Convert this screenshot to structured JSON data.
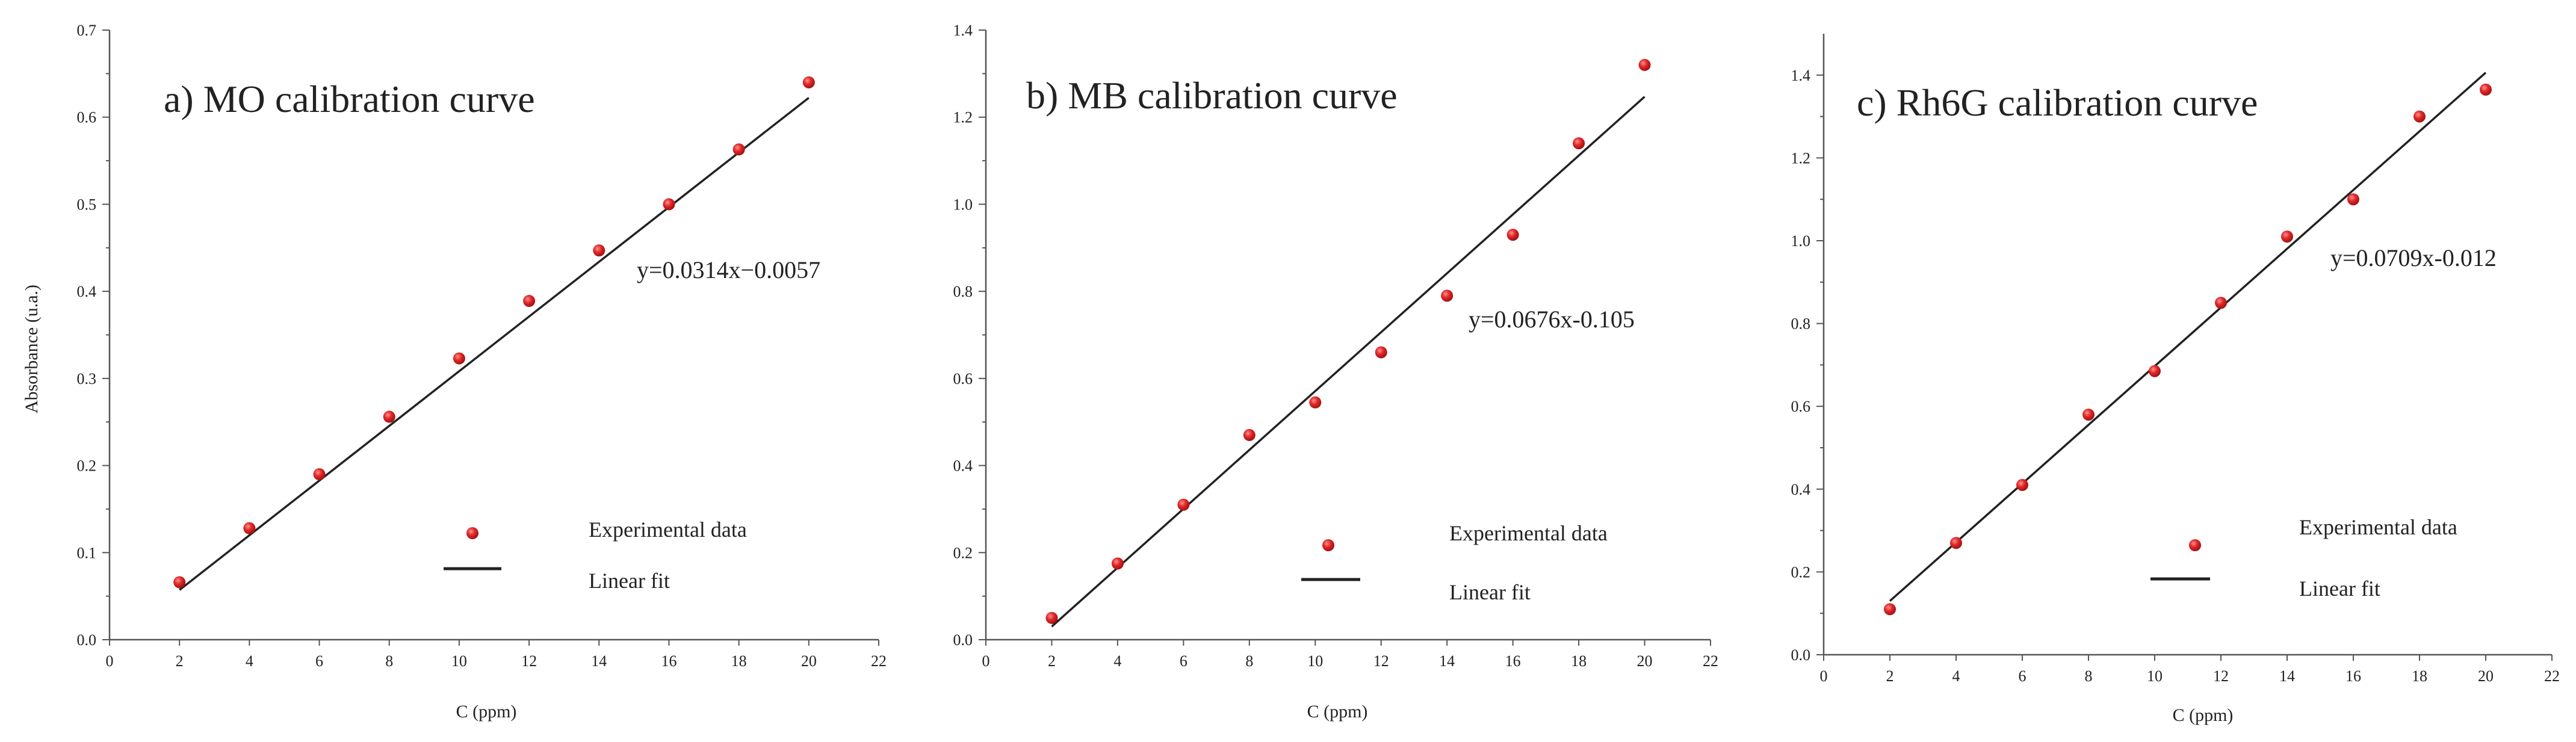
{
  "chart_data": [
    {
      "type": "scatter",
      "title": "a) MO calibration curve",
      "xlabel": "C (ppm)",
      "ylabel": "Absorbance (u.a.)",
      "xlim": [
        0,
        22
      ],
      "ylim": [
        0,
        0.7
      ],
      "xticks": [
        0,
        2,
        4,
        6,
        8,
        10,
        12,
        14,
        16,
        18,
        20,
        22
      ],
      "xtick_labels": [
        "0",
        "2",
        "4",
        "6",
        "8",
        "10",
        "12",
        "14",
        "16",
        "18",
        "20",
        "22"
      ],
      "yticks": [
        0,
        0.1,
        0.2,
        0.3,
        0.4,
        0.5,
        0.6,
        0.7
      ],
      "ytick_labels": [
        "0.0",
        "0.1",
        "0.2",
        "0.3",
        "0.4",
        "0.5",
        "0.6",
        "0.7"
      ],
      "series": [
        {
          "name": "Experimental data",
          "x": [
            2,
            4,
            6,
            8,
            10,
            12,
            14,
            16,
            18,
            20
          ],
          "y": [
            0.066,
            0.128,
            0.19,
            0.256,
            0.323,
            0.389,
            0.447,
            0.5,
            0.563,
            0.64
          ],
          "color": "#d42a2a"
        }
      ],
      "fit": {
        "name": "Linear fit",
        "slope": 0.0314,
        "intercept": -0.0057,
        "x_range": [
          2,
          20
        ],
        "color": "#222222"
      },
      "equation": "y=0.0314x−0.0057",
      "legend": {
        "marker_label": "Experimental data",
        "line_label": "Linear fit",
        "position": "lower-right"
      }
    },
    {
      "type": "scatter",
      "title": "b) MB calibration curve",
      "xlabel": "C (ppm)",
      "ylabel": "",
      "xlim": [
        0,
        22
      ],
      "ylim": [
        0,
        1.4
      ],
      "xticks": [
        0,
        2,
        4,
        6,
        8,
        10,
        12,
        14,
        16,
        18,
        20,
        22
      ],
      "xtick_labels": [
        "0",
        "2",
        "4",
        "6",
        "8",
        "10",
        "12",
        "14",
        "16",
        "18",
        "20",
        "22"
      ],
      "yticks": [
        0,
        0.2,
        0.4,
        0.6,
        0.8,
        1.0,
        1.2,
        1.4
      ],
      "ytick_labels": [
        "0.0",
        "0.2",
        "0.4",
        "0.6",
        "0.8",
        "1.0",
        "1.2",
        "1.4"
      ],
      "series": [
        {
          "name": "Experimental data",
          "x": [
            2,
            4,
            6,
            8,
            10,
            12,
            14,
            16,
            18,
            20
          ],
          "y": [
            0.05,
            0.175,
            0.31,
            0.47,
            0.545,
            0.66,
            0.79,
            0.93,
            1.14,
            1.32
          ],
          "color": "#d42a2a"
        }
      ],
      "fit": {
        "name": "Linear fit",
        "slope": 0.0676,
        "intercept": -0.105,
        "x_range": [
          2,
          20
        ],
        "color": "#222222"
      },
      "equation": "y=0.0676x-0.105",
      "legend": {
        "marker_label": "Experimental data",
        "line_label": "Linear fit",
        "position": "lower-right"
      }
    },
    {
      "type": "scatter",
      "title": "c) Rh6G calibration curve",
      "xlabel": "C (ppm)",
      "ylabel": "",
      "xlim": [
        0,
        22
      ],
      "ylim": [
        0,
        1.5
      ],
      "xticks": [
        0,
        2,
        4,
        6,
        8,
        10,
        12,
        14,
        16,
        18,
        20,
        22
      ],
      "xtick_labels": [
        "0",
        "2",
        "4",
        "6",
        "8",
        "10",
        "12",
        "14",
        "16",
        "18",
        "20",
        "22"
      ],
      "yticks": [
        0,
        0.2,
        0.4,
        0.6,
        0.8,
        1.0,
        1.2,
        1.4
      ],
      "ytick_labels": [
        "0.0",
        "0.2",
        "0.4",
        "0.6",
        "0.8",
        "1.0",
        "1.2",
        "1.4"
      ],
      "series": [
        {
          "name": "Experimental data",
          "x": [
            2,
            4,
            6,
            8,
            10,
            12,
            14,
            16,
            18,
            20
          ],
          "y": [
            0.11,
            0.27,
            0.41,
            0.58,
            0.685,
            0.85,
            1.01,
            1.1,
            1.3,
            1.365
          ],
          "color": "#d42a2a"
        }
      ],
      "fit": {
        "name": "Linear fit",
        "slope": 0.0709,
        "intercept": -0.012,
        "x_range": [
          2,
          20
        ],
        "color": "#222222"
      },
      "equation": "y=0.0709x-0.012",
      "legend": {
        "marker_label": "Experimental data",
        "line_label": "Linear fit",
        "position": "lower-right"
      }
    }
  ]
}
